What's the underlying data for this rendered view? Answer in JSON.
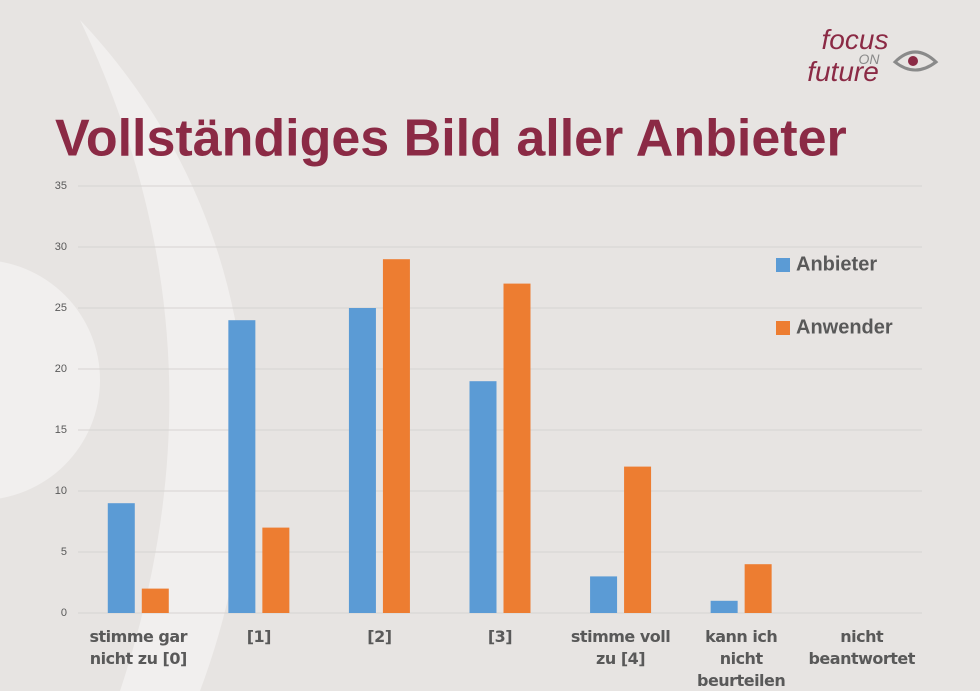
{
  "logo": {
    "focus": "focus",
    "on": "ON",
    "future": "future"
  },
  "chart_data": {
    "type": "bar",
    "title": "Vollständiges Bild aller Anbieter",
    "categories": [
      "stimme gar nicht zu [0]",
      "[1]",
      "[2]",
      "[3]",
      "stimme voll zu [4]",
      "kann ich nicht beurteilen",
      "nicht beantwortet"
    ],
    "series": [
      {
        "name": "Anbieter",
        "color": "#5b9bd5",
        "values": [
          9,
          24,
          25,
          19,
          3,
          1,
          0
        ]
      },
      {
        "name": "Anwender",
        "color": "#ed7d31",
        "values": [
          2,
          7,
          29,
          27,
          12,
          4,
          0
        ]
      }
    ],
    "ylim": [
      0,
      35
    ],
    "yticks": [
      0,
      5,
      10,
      15,
      20,
      25,
      30,
      35
    ],
    "grid": true,
    "legend": "right"
  }
}
